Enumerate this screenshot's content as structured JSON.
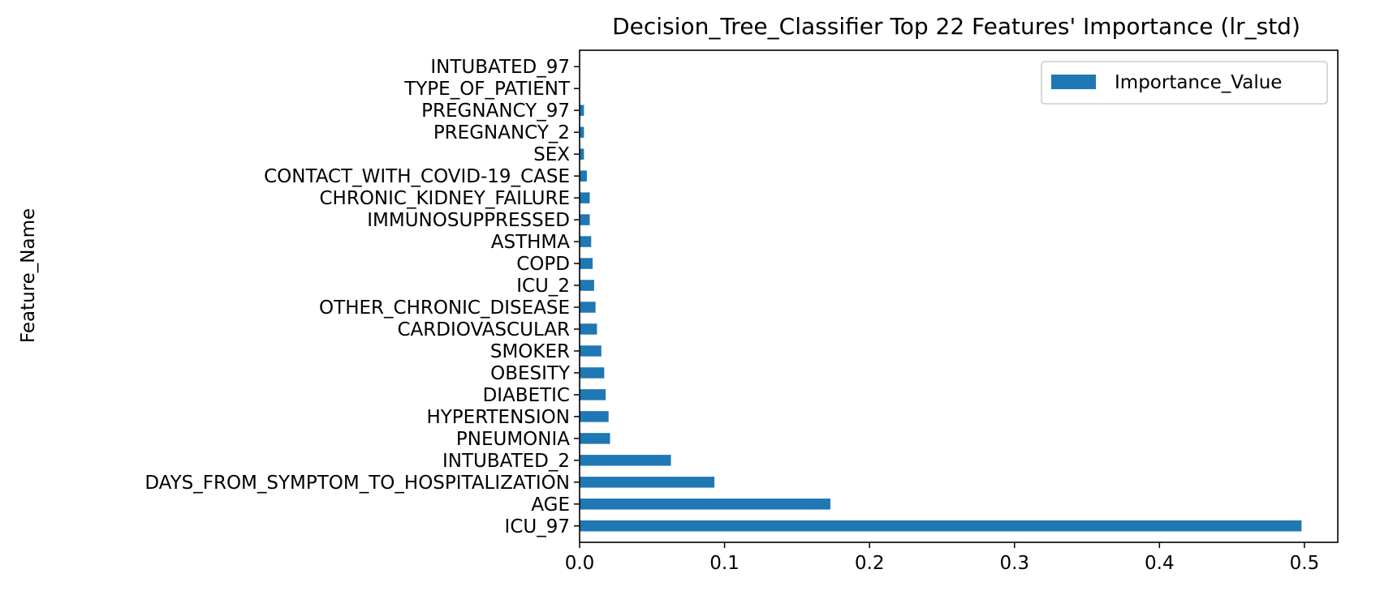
{
  "chart_data": {
    "type": "bar",
    "orientation": "horizontal",
    "title": "Decision_Tree_Classifier Top 22 Features' Importance (lr_std)",
    "xlabel": "",
    "ylabel": "Feature_Name",
    "xlim": [
      0.0,
      0.523
    ],
    "xticks": [
      0.0,
      0.1,
      0.2,
      0.3,
      0.4,
      0.5
    ],
    "xtick_labels": [
      "0.0",
      "0.1",
      "0.2",
      "0.3",
      "0.4",
      "0.5"
    ],
    "grid": false,
    "legend_position": "upper right",
    "categories": [
      "ICU_97",
      "AGE",
      "DAYS_FROM_SYMPTOM_TO_HOSPITALIZATION",
      "INTUBATED_2",
      "PNEUMONIA",
      "HYPERTENSION",
      "DIABETIC",
      "OBESITY",
      "SMOKER",
      "CARDIOVASCULAR",
      "OTHER_CHRONIC_DISEASE",
      "ICU_2",
      "COPD",
      "ASTHMA",
      "IMMUNOSUPPRESSED",
      "CHRONIC_KIDNEY_FAILURE",
      "CONTACT_WITH_COVID-19_CASE",
      "SEX",
      "PREGNANCY_2",
      "PREGNANCY_97",
      "TYPE_OF_PATIENT",
      "INTUBATED_97"
    ],
    "series": [
      {
        "name": "Importance_Value",
        "color": "#1f77b4",
        "values": [
          0.498,
          0.173,
          0.093,
          0.063,
          0.021,
          0.02,
          0.018,
          0.017,
          0.015,
          0.012,
          0.011,
          0.01,
          0.009,
          0.008,
          0.007,
          0.007,
          0.005,
          0.003,
          0.003,
          0.003,
          0.0,
          0.0
        ]
      }
    ]
  }
}
